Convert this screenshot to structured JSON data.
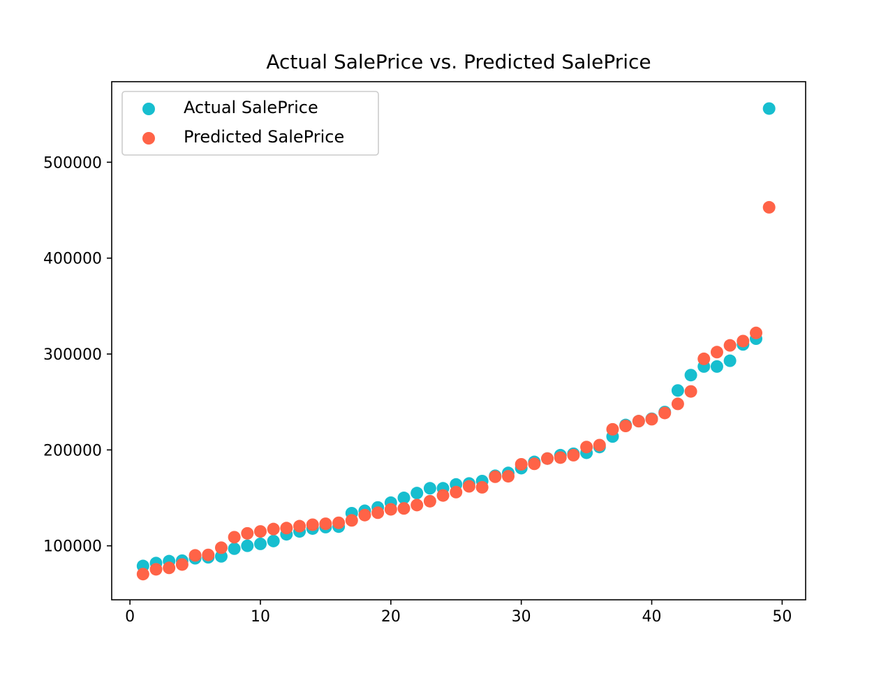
{
  "chart_data": {
    "type": "scatter",
    "title": "Actual SalePrice vs. Predicted SalePrice",
    "xlabel": "",
    "ylabel": "",
    "xlim": [
      -1.4,
      51.8
    ],
    "ylim": [
      43700,
      584000
    ],
    "xticks": [
      0,
      10,
      20,
      30,
      40,
      50
    ],
    "yticks": [
      100000,
      200000,
      300000,
      400000,
      500000
    ],
    "grid": false,
    "legend_position": "upper-left",
    "series": [
      {
        "name": "Actual SalePrice",
        "color": "#17becf",
        "x": [
          1,
          2,
          3,
          4,
          5,
          6,
          7,
          8,
          9,
          10,
          11,
          12,
          13,
          14,
          15,
          16,
          17,
          18,
          19,
          20,
          21,
          22,
          23,
          24,
          25,
          26,
          27,
          28,
          29,
          30,
          31,
          32,
          33,
          34,
          35,
          36,
          37,
          38,
          39,
          40,
          41,
          42,
          43,
          44,
          45,
          46,
          47,
          48,
          49
        ],
        "y": [
          79000,
          82000,
          84000,
          84500,
          87000,
          88000,
          89000,
          97000,
          100000,
          102000,
          105000,
          112000,
          115000,
          118000,
          119500,
          120000,
          134000,
          136500,
          140000,
          145000,
          150000,
          155000,
          160000,
          160000,
          164000,
          165000,
          167500,
          173000,
          176000,
          181000,
          187500,
          191000,
          194500,
          196000,
          197000,
          203000,
          214000,
          226000,
          230000,
          232500,
          239500,
          262000,
          278000,
          287000,
          287000,
          293000,
          310000,
          316000,
          556000
        ]
      },
      {
        "name": "Predicted SalePrice",
        "color": "#ff6347",
        "x": [
          1,
          2,
          3,
          4,
          5,
          6,
          7,
          8,
          9,
          10,
          11,
          12,
          13,
          14,
          15,
          16,
          17,
          18,
          19,
          20,
          21,
          22,
          23,
          24,
          25,
          26,
          27,
          28,
          29,
          30,
          31,
          32,
          33,
          34,
          35,
          36,
          37,
          38,
          39,
          40,
          41,
          42,
          43,
          44,
          45,
          46,
          47,
          48,
          49
        ],
        "y": [
          70500,
          75500,
          77000,
          80500,
          90000,
          90500,
          98000,
          109000,
          113000,
          115000,
          117500,
          118500,
          120500,
          122000,
          123000,
          124000,
          126500,
          132000,
          134500,
          138000,
          139000,
          142500,
          146500,
          152500,
          156000,
          162000,
          161000,
          172000,
          172500,
          185000,
          185500,
          191000,
          192000,
          194500,
          203000,
          205000,
          221500,
          225000,
          230000,
          232000,
          238500,
          248000,
          261000,
          295000,
          302000,
          309000,
          313500,
          322000,
          453000
        ]
      }
    ]
  }
}
